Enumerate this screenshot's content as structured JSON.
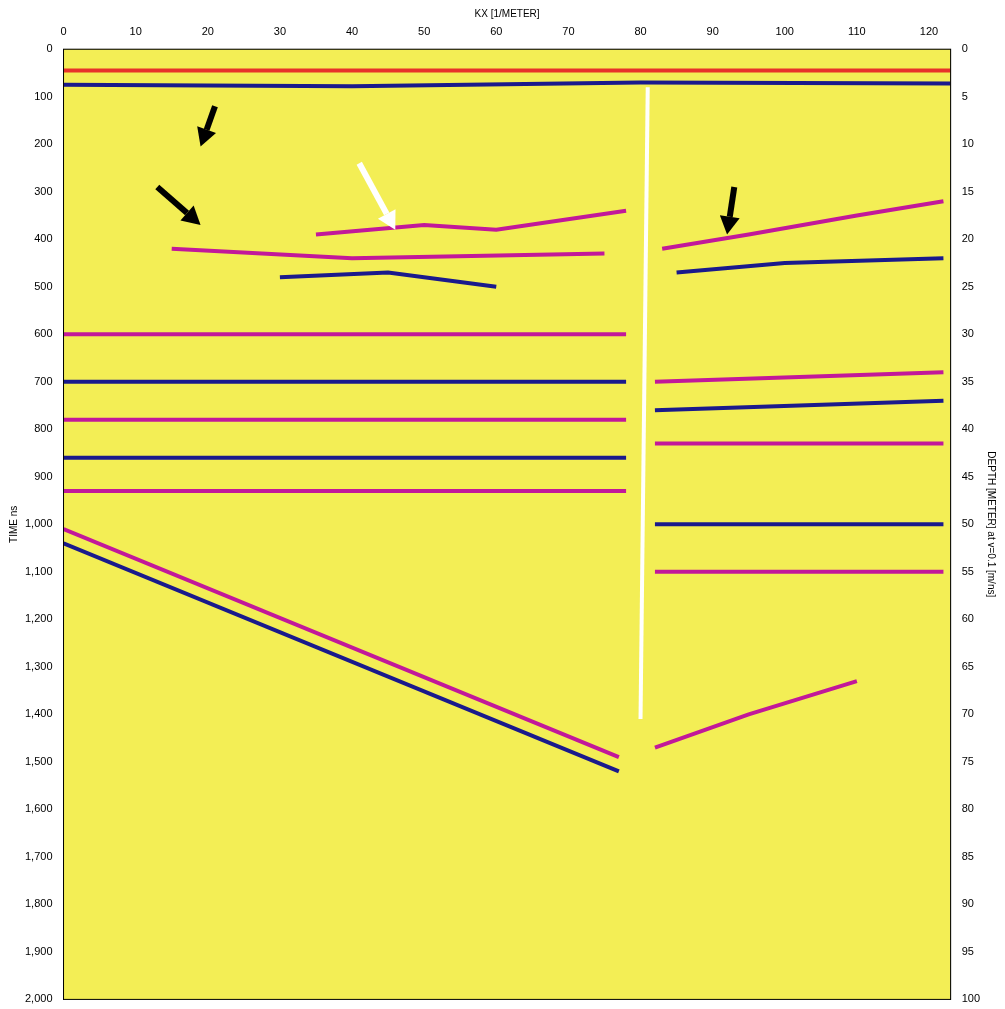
{
  "chart_data": {
    "type": "line",
    "x_label": "KX [1/METER]",
    "y_label": "TIME ns",
    "y2_label": "DEPTH [METER] at v=0.1 [m/ns]",
    "xlim": [
      0,
      123
    ],
    "xticks": [
      0,
      10,
      20,
      30,
      40,
      50,
      60,
      70,
      80,
      90,
      100,
      110,
      120
    ],
    "ylim": [
      0,
      2000
    ],
    "yticks": [
      0,
      100,
      200,
      300,
      400,
      500,
      600,
      700,
      800,
      900,
      1000,
      1100,
      1200,
      1300,
      1400,
      1500,
      1600,
      1700,
      1800,
      1900,
      2000
    ],
    "y2lim": [
      0,
      100
    ],
    "y2ticks": [
      0,
      5,
      10,
      15,
      20,
      25,
      30,
      35,
      40,
      45,
      50,
      55,
      60,
      65,
      70,
      75,
      80,
      85,
      90,
      95,
      100
    ],
    "grid": false,
    "series": [
      {
        "color": "#e8322a",
        "x": [
          0,
          123
        ],
        "values": [
          45,
          45
        ]
      },
      {
        "color": "#1a1a8c",
        "x": [
          0,
          40,
          80,
          123
        ],
        "values": [
          75,
          78,
          70,
          72
        ]
      },
      {
        "color": "#c2189a",
        "x": [
          35,
          50,
          60,
          78
        ],
        "values": [
          390,
          370,
          380,
          340
        ]
      },
      {
        "color": "#c2189a",
        "x": [
          15,
          40,
          75
        ],
        "values": [
          420,
          440,
          430
        ]
      },
      {
        "color": "#1a1a8c",
        "x": [
          30,
          45,
          60
        ],
        "values": [
          480,
          470,
          500
        ]
      },
      {
        "color": "#c2189a",
        "x": [
          83,
          95,
          110,
          122
        ],
        "values": [
          420,
          390,
          350,
          320
        ]
      },
      {
        "color": "#1a1a8c",
        "x": [
          85,
          100,
          122
        ],
        "values": [
          470,
          450,
          440
        ]
      },
      {
        "color": "#c2189a",
        "x": [
          0,
          78
        ],
        "values": [
          600,
          600
        ]
      },
      {
        "color": "#1a1a8c",
        "x": [
          0,
          78
        ],
        "values": [
          700,
          700
        ]
      },
      {
        "color": "#c2189a",
        "x": [
          0,
          78
        ],
        "values": [
          780,
          780
        ]
      },
      {
        "color": "#1a1a8c",
        "x": [
          0,
          78
        ],
        "values": [
          860,
          860
        ]
      },
      {
        "color": "#c2189a",
        "x": [
          0,
          78
        ],
        "values": [
          930,
          930
        ]
      },
      {
        "color": "#c2189a",
        "x": [
          0,
          77
        ],
        "values": [
          1010,
          1490
        ]
      },
      {
        "color": "#1a1a8c",
        "x": [
          0,
          77
        ],
        "values": [
          1040,
          1520
        ]
      },
      {
        "color": "#c2189a",
        "x": [
          82,
          122
        ],
        "values": [
          700,
          680
        ]
      },
      {
        "color": "#1a1a8c",
        "x": [
          82,
          122
        ],
        "values": [
          760,
          740
        ]
      },
      {
        "color": "#c2189a",
        "x": [
          82,
          122
        ],
        "values": [
          830,
          830
        ]
      },
      {
        "color": "#1a1a8c",
        "x": [
          82,
          122
        ],
        "values": [
          1000,
          1000
        ]
      },
      {
        "color": "#c2189a",
        "x": [
          82,
          122
        ],
        "values": [
          1100,
          1100
        ]
      },
      {
        "color": "#c2189a",
        "x": [
          82,
          95,
          110
        ],
        "values": [
          1470,
          1400,
          1330
        ]
      },
      {
        "color": "#ffffff",
        "x": [
          81,
          80
        ],
        "values": [
          80,
          1410
        ]
      }
    ],
    "arrows": [
      {
        "color": "#000000",
        "x": [
          21,
          19
        ],
        "values": [
          120,
          205
        ]
      },
      {
        "color": "#000000",
        "x": [
          13,
          19
        ],
        "values": [
          290,
          370
        ]
      },
      {
        "color": "#ffffff",
        "x": [
          41,
          46
        ],
        "values": [
          240,
          380
        ]
      },
      {
        "color": "#000000",
        "x": [
          93,
          92
        ],
        "values": [
          290,
          390
        ]
      }
    ]
  }
}
